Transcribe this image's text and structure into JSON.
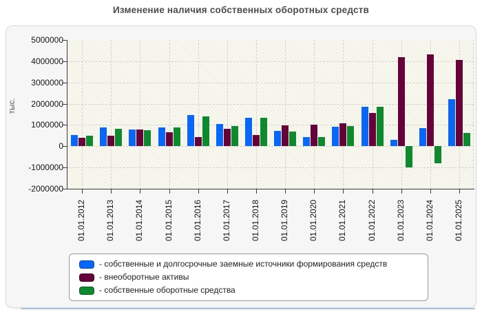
{
  "title": "Изменение наличия собственных оборотных средств",
  "y_axis_title": "тыс.",
  "chart_data": {
    "type": "bar",
    "title": "Изменение наличия собственных оборотных средств",
    "xlabel": "",
    "ylabel": "тыс.",
    "ylim": [
      -2000000,
      5000000
    ],
    "ytick_step": 1000000,
    "yticks": [
      5000000,
      4000000,
      3000000,
      2000000,
      1000000,
      0,
      -1000000,
      -2000000
    ],
    "grid": true,
    "legend_position": "bottom",
    "categories": [
      "01.01.2012",
      "01.01.2013",
      "01.01.2014",
      "01.01.2015",
      "01.01.2016",
      "01.01.2017",
      "01.01.2018",
      "01.01.2019",
      "01.01.2020",
      "01.01.2021",
      "01.01.2022",
      "01.01.2023",
      "01.01.2024",
      "01.01.2025"
    ],
    "series": [
      {
        "name": "собственные и долгосрочные заемные источники формирования средств",
        "color": "#0866F8",
        "values": [
          530000,
          870000,
          780000,
          900000,
          1470000,
          1050000,
          1340000,
          730000,
          440000,
          920000,
          1860000,
          300000,
          850000,
          2200000
        ]
      },
      {
        "name": "внеоборотные активы",
        "color": "#670139",
        "values": [
          390000,
          500000,
          800000,
          650000,
          430000,
          810000,
          540000,
          970000,
          1000000,
          1090000,
          1560000,
          4180000,
          4330000,
          4050000
        ]
      },
      {
        "name": "собственные оборотные средства",
        "color": "#0E8A2E",
        "values": [
          480000,
          820000,
          770000,
          900000,
          1400000,
          960000,
          1330000,
          700000,
          440000,
          950000,
          1860000,
          -1000000,
          -800000,
          620000
        ]
      }
    ]
  },
  "legend": {
    "items": [
      {
        "label": "- собственные и долгосрочные заемные источники формирования средств",
        "color": "#0866F8"
      },
      {
        "label": "- внеоборотные активы",
        "color": "#670139"
      },
      {
        "label": "- собственные оборотные средства",
        "color": "#0E8A2E"
      }
    ]
  }
}
